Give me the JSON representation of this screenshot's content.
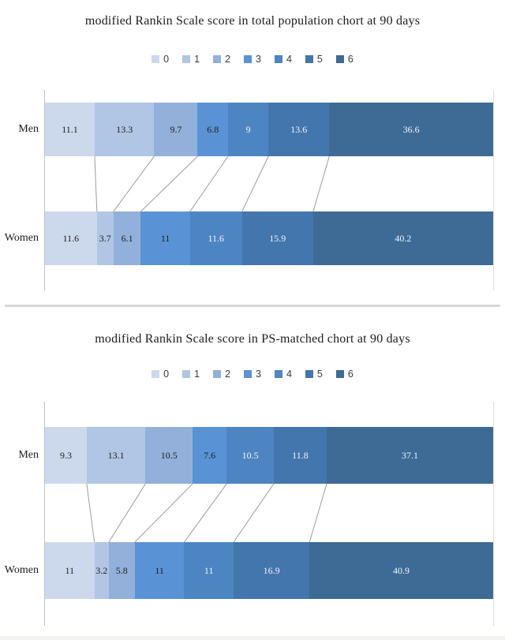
{
  "palette": {
    "segment_colors": [
      "#ccd9ec",
      "#b0c6e4",
      "#92b0d9",
      "#5a93d5",
      "#4d85c3",
      "#4376ac",
      "#3d6b96"
    ],
    "value_label_dark": "#1f1f1f",
    "value_label_light": "#f2f5f8",
    "axis_color": "#c2c2c2",
    "connector_color": "#9c9c9c",
    "divider_color": "#d6d6d6",
    "white_text_from_index": 4
  },
  "chart_data": [
    {
      "type": "bar",
      "orientation": "horizontal-stacked",
      "title": "modified Rankin Scale score in total population chort at 90 days",
      "legend_labels": [
        "0",
        "1",
        "2",
        "3",
        "4",
        "5",
        "6"
      ],
      "legend_position": "top-center",
      "categories": [
        "Men",
        "Women"
      ],
      "units": "percent",
      "xlim": [
        0,
        100
      ],
      "grid": false,
      "series": [
        {
          "name": "Men",
          "values": [
            11.1,
            13.3,
            9.7,
            6.8,
            9,
            13.6,
            36.6
          ]
        },
        {
          "name": "Women",
          "values": [
            11.6,
            3.7,
            6.1,
            11,
            11.6,
            15.9,
            40.2
          ]
        }
      ]
    },
    {
      "type": "bar",
      "orientation": "horizontal-stacked",
      "title": "modified Rankin Scale score in PS-matched chort at 90 days",
      "legend_labels": [
        "0",
        "1",
        "2",
        "3",
        "4",
        "5",
        "6"
      ],
      "legend_position": "top-center",
      "categories": [
        "Men",
        "Women"
      ],
      "units": "percent",
      "xlim": [
        0,
        100
      ],
      "grid": false,
      "series": [
        {
          "name": "Men",
          "values": [
            9.3,
            13.1,
            10.5,
            7.6,
            10.5,
            11.8,
            37.1
          ]
        },
        {
          "name": "Women",
          "values": [
            11,
            3.2,
            5.8,
            11,
            11,
            16.9,
            40.9
          ]
        }
      ]
    }
  ]
}
